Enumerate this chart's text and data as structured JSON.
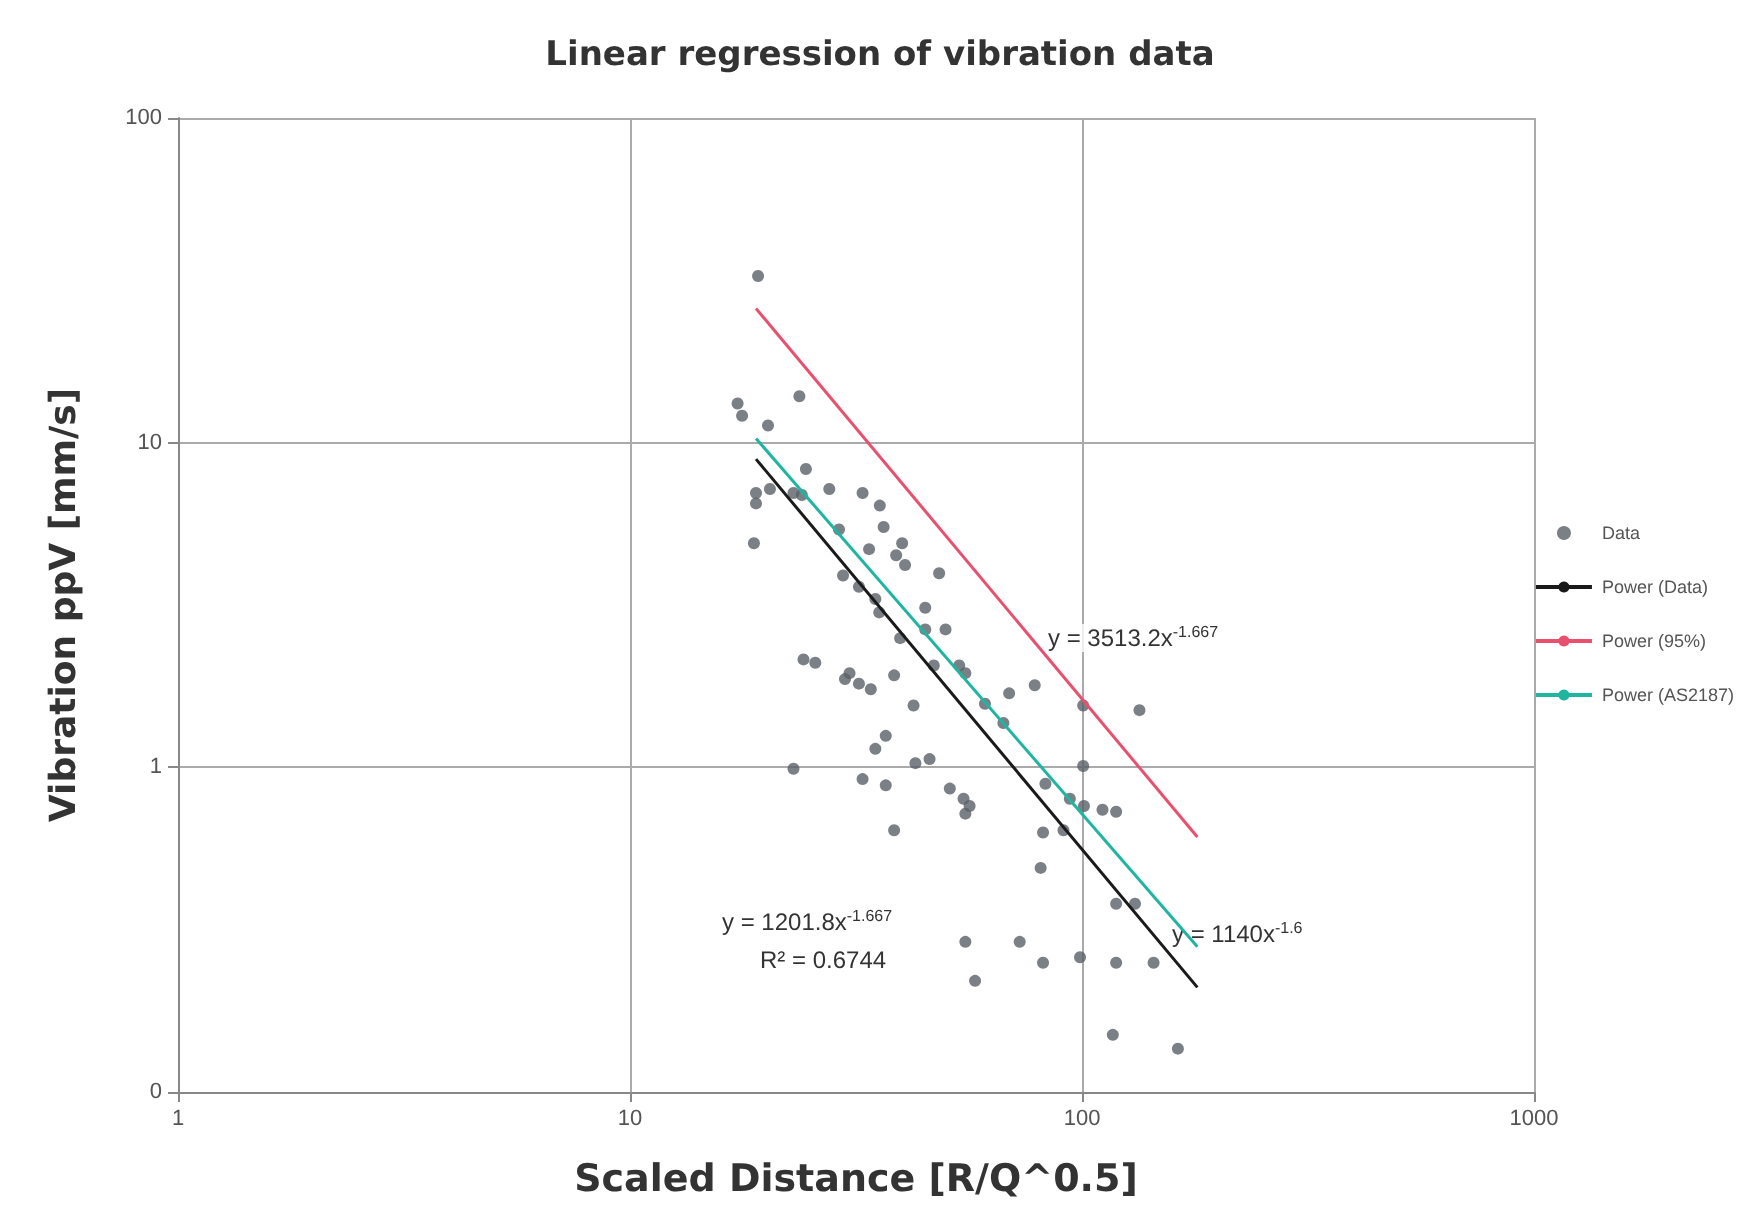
{
  "chart_data": {
    "type": "scatter",
    "title": "Linear regression of vibration data",
    "xlabel": "Scaled Distance [R/Q^0.5]",
    "ylabel": "Vibration ppV [mm/s]",
    "log": "xy",
    "grid": true,
    "legend": "right",
    "marker": "circle",
    "xlim": [
      1,
      1000
    ],
    "xticks": [
      1,
      10,
      100,
      1000
    ],
    "ylim": [
      0.1,
      100
    ],
    "yticks": [
      {
        "value": 0.1,
        "label": "0"
      },
      1,
      10,
      100
    ],
    "series": [
      {
        "name": "Data",
        "color": "#5a6068",
        "x": [
          19.2,
          17.3,
          17.7,
          23.7,
          20.2,
          24.5,
          19.0,
          19.0,
          18.8,
          20.4,
          23,
          24,
          27.6,
          32.7,
          29,
          35.7,
          36.4,
          33.8,
          40,
          38.8,
          40.6,
          48.3,
          29.6,
          32.1,
          34.9,
          35.6,
          45,
          39.6,
          45,
          49.9,
          47,
          53.5,
          55.2,
          24.2,
          25.7,
          30.6,
          32.1,
          29.9,
          34.1,
          38.4,
          42.4,
          61,
          69,
          78.6,
          100.6,
          67,
          36.8,
          34.9,
          23,
          32.7,
          36.8,
          42.8,
          46,
          51,
          54.7,
          56.4,
          55.2,
          38.4,
          83,
          100.6,
          94,
          101,
          111,
          119,
          82,
          91,
          81,
          119,
          131,
          144,
          55.2,
          72.8,
          58,
          82,
          99,
          119,
          117,
          163,
          134
        ],
        "values": [
          32.6,
          13.2,
          12.1,
          13.9,
          11.3,
          8.3,
          7.0,
          6.5,
          4.9,
          7.2,
          7.0,
          6.9,
          7.2,
          7.0,
          5.4,
          6.4,
          5.5,
          4.7,
          4.9,
          4.5,
          4.2,
          3.96,
          3.9,
          3.6,
          3.3,
          3.0,
          3.1,
          2.5,
          2.66,
          2.66,
          2.06,
          2.06,
          1.95,
          2.15,
          2.1,
          1.95,
          1.81,
          1.87,
          1.74,
          1.92,
          1.55,
          1.57,
          1.69,
          1.79,
          1.55,
          1.37,
          1.25,
          1.14,
          0.99,
          0.92,
          0.88,
          1.03,
          1.06,
          0.86,
          0.8,
          0.76,
          0.72,
          0.64,
          0.89,
          1.01,
          0.8,
          0.76,
          0.74,
          0.73,
          0.63,
          0.64,
          0.49,
          0.38,
          0.38,
          0.25,
          0.29,
          0.29,
          0.22,
          0.25,
          0.26,
          0.25,
          0.15,
          0.136,
          1.5
        ]
      },
      {
        "name": "Power (Data)",
        "type": "line",
        "marker": "none",
        "color": "#1a1a1a",
        "x": [
          19,
          180
        ],
        "values": [
          8.9,
          0.21
        ]
      },
      {
        "name": "Power (95%)",
        "type": "line",
        "marker": "none",
        "color": "#e8506e",
        "x": [
          19,
          180
        ],
        "values": [
          25.9,
          0.61
        ]
      },
      {
        "name": "Power (AS2187)",
        "type": "line",
        "marker": "none",
        "color": "#1fb5a0",
        "x": [
          19,
          180
        ],
        "values": [
          10.3,
          0.28
        ]
      }
    ],
    "annotations": [
      "y = 3513.2x$^{-1.667}$",
      "y = 1201.8x$^{-1.667}$",
      "R² = 0.6744",
      "y = 1140x$^{-1.6}$"
    ]
  }
}
